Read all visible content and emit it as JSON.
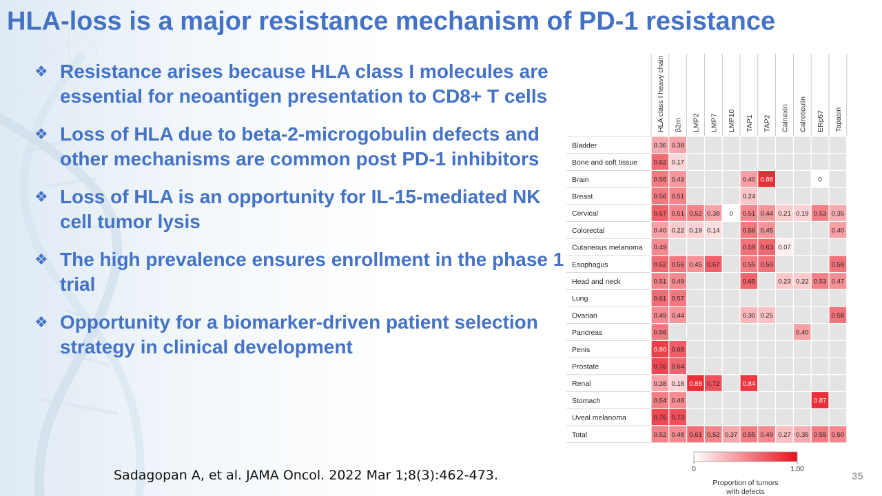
{
  "slide": {
    "title": "HLA-loss is a major resistance mechanism of PD-1 resistance",
    "bullets": [
      "Resistance arises because HLA class I molecules are essential for neoantigen presentation to CD8+ T cells",
      "Loss of HLA due to beta-2-microgobulin defects and other mechanisms are common post PD-1 inhibitors",
      "Loss of HLA is an opportunity for IL-15-mediated NK cell tumor lysis",
      "The high prevalence ensures enrollment in the phase 1 trial",
      "Opportunity for a biomarker-driven patient selection strategy in clinical development"
    ],
    "bullet_icon": "❖",
    "citation": "Sadagopan A, et al. JAMA Oncol. 2022 Mar 1;8(3):462-473.",
    "page_number": "35"
  },
  "colors": {
    "accent": "#4472c4",
    "heat_high": "#e8101c",
    "heat_low": "#ffffff",
    "missing_cell": "#e4e4e4"
  },
  "chart_data": {
    "type": "heatmap",
    "title": "",
    "columns": [
      "HLA class I heavy chain",
      "β2m",
      "LMP2",
      "LMP7",
      "LMP10",
      "TAP1",
      "TAP2",
      "Calnexin",
      "Calreticulin",
      "ERp57",
      "Tapasin"
    ],
    "rows": [
      "Bladder",
      "Bone and soft tissue",
      "Brain",
      "Breast",
      "Cervical",
      "Colorectal",
      "Cutaneous melanoma",
      "Esophagus",
      "Head and neck",
      "Lung",
      "Ovarian",
      "Pancreas",
      "Penis",
      "Prostate",
      "Renal",
      "Stomach",
      "Uveal melanoma",
      "Total"
    ],
    "values": [
      [
        0.36,
        0.38,
        null,
        null,
        null,
        null,
        null,
        null,
        null,
        null,
        null
      ],
      [
        0.62,
        0.17,
        null,
        null,
        null,
        null,
        null,
        null,
        null,
        null,
        null
      ],
      [
        0.55,
        0.43,
        null,
        null,
        null,
        0.4,
        0.88,
        null,
        null,
        0,
        null
      ],
      [
        0.56,
        0.51,
        null,
        null,
        null,
        0.24,
        null,
        null,
        null,
        null,
        null
      ],
      [
        0.67,
        0.51,
        0.52,
        0.38,
        0,
        0.51,
        0.44,
        0.21,
        0.19,
        0.53,
        0.35
      ],
      [
        0.4,
        0.22,
        0.19,
        0.14,
        null,
        0.56,
        0.45,
        null,
        null,
        null,
        0.4
      ],
      [
        0.49,
        null,
        null,
        null,
        null,
        0.59,
        0.63,
        0.07,
        null,
        null,
        null
      ],
      [
        0.62,
        0.56,
        0.45,
        0.67,
        null,
        0.55,
        0.59,
        null,
        null,
        null,
        0.59
      ],
      [
        0.51,
        0.49,
        null,
        null,
        null,
        0.65,
        null,
        0.23,
        0.22,
        0.53,
        0.47
      ],
      [
        0.61,
        0.57,
        null,
        null,
        null,
        null,
        null,
        null,
        null,
        null,
        null
      ],
      [
        0.49,
        0.44,
        null,
        null,
        null,
        0.3,
        0.25,
        null,
        null,
        null,
        0.58
      ],
      [
        0.56,
        null,
        null,
        null,
        null,
        null,
        null,
        null,
        0.4,
        null,
        null
      ],
      [
        0.8,
        0.68,
        null,
        null,
        null,
        null,
        null,
        null,
        null,
        null,
        null
      ],
      [
        0.76,
        0.64,
        null,
        null,
        null,
        null,
        null,
        null,
        null,
        null,
        null
      ],
      [
        0.38,
        0.18,
        0.88,
        0.72,
        null,
        0.84,
        null,
        null,
        null,
        null,
        null
      ],
      [
        0.54,
        0.48,
        null,
        null,
        null,
        null,
        null,
        null,
        null,
        0.87,
        null
      ],
      [
        0.76,
        0.73,
        null,
        null,
        null,
        null,
        null,
        null,
        null,
        null,
        null
      ],
      [
        0.52,
        0.48,
        0.61,
        0.52,
        0.37,
        0.55,
        0.49,
        0.27,
        0.35,
        0.55,
        0.5
      ]
    ],
    "value_labels": [
      [
        "0.36",
        "0.38",
        "",
        "",
        "",
        "",
        "",
        "",
        "",
        "",
        ""
      ],
      [
        "0.62",
        "0.17",
        "",
        "",
        "",
        "",
        "",
        "",
        "",
        "",
        ""
      ],
      [
        "0.55",
        "0.43",
        "",
        "",
        "",
        "0.40",
        "0.88",
        "",
        "",
        "0",
        ""
      ],
      [
        "0.56",
        "0.51",
        "",
        "",
        "",
        "0.24",
        "",
        "",
        "",
        "",
        ""
      ],
      [
        "0.67",
        "0.51",
        "0.52",
        "0.38",
        "0",
        "0.51",
        "0.44",
        "0.21",
        "0.19",
        "0.53",
        "0.35"
      ],
      [
        "0.40",
        "0.22",
        "0.19",
        "0.14",
        "",
        "0.56",
        "0.45",
        "",
        "",
        "",
        "0.40"
      ],
      [
        "0.49",
        "",
        "",
        "",
        "",
        "0.59",
        "0.63",
        "0.07",
        "",
        "",
        ""
      ],
      [
        "0.62",
        "0.56",
        "0.45",
        "0.67",
        "",
        "0.55",
        "0.59",
        "",
        "",
        "",
        "0.59"
      ],
      [
        "0.51",
        "0.49",
        "",
        "",
        "",
        "0.65",
        "",
        "0.23",
        "0.22",
        "0.53",
        "0.47"
      ],
      [
        "0.61",
        "0.57",
        "",
        "",
        "",
        "",
        "",
        "",
        "",
        "",
        ""
      ],
      [
        "0.49",
        "0.44",
        "",
        "",
        "",
        "0.30",
        "0.25",
        "",
        "",
        "",
        "0.58"
      ],
      [
        "0.56",
        "",
        "",
        "",
        "",
        "",
        "",
        "",
        "0.40",
        "",
        ""
      ],
      [
        "0.80",
        "0.68",
        "",
        "",
        "",
        "",
        "",
        "",
        "",
        "",
        ""
      ],
      [
        "0.76",
        "0.64",
        "",
        "",
        "",
        "",
        "",
        "",
        "",
        "",
        ""
      ],
      [
        "0.38",
        "0.18",
        "0.88",
        "0.72",
        "",
        "0.84",
        "",
        "",
        "",
        "",
        ""
      ],
      [
        "0.54",
        "0.48",
        "",
        "",
        "",
        "",
        "",
        "",
        "",
        "0.87",
        ""
      ],
      [
        "0.76",
        "0.73",
        "",
        "",
        "",
        "",
        "",
        "",
        "",
        "",
        ""
      ],
      [
        "0.52",
        "0.48",
        "0.61",
        "0.52",
        "0.37",
        "0.55",
        "0.49",
        "0.27",
        "0.35",
        "0.55",
        "0.50"
      ]
    ],
    "colorbar": {
      "min": 0,
      "max": 1,
      "min_label": "0",
      "max_label": "1.00",
      "label_line1": "Proportion of tumors",
      "label_line2": "with defects"
    }
  }
}
